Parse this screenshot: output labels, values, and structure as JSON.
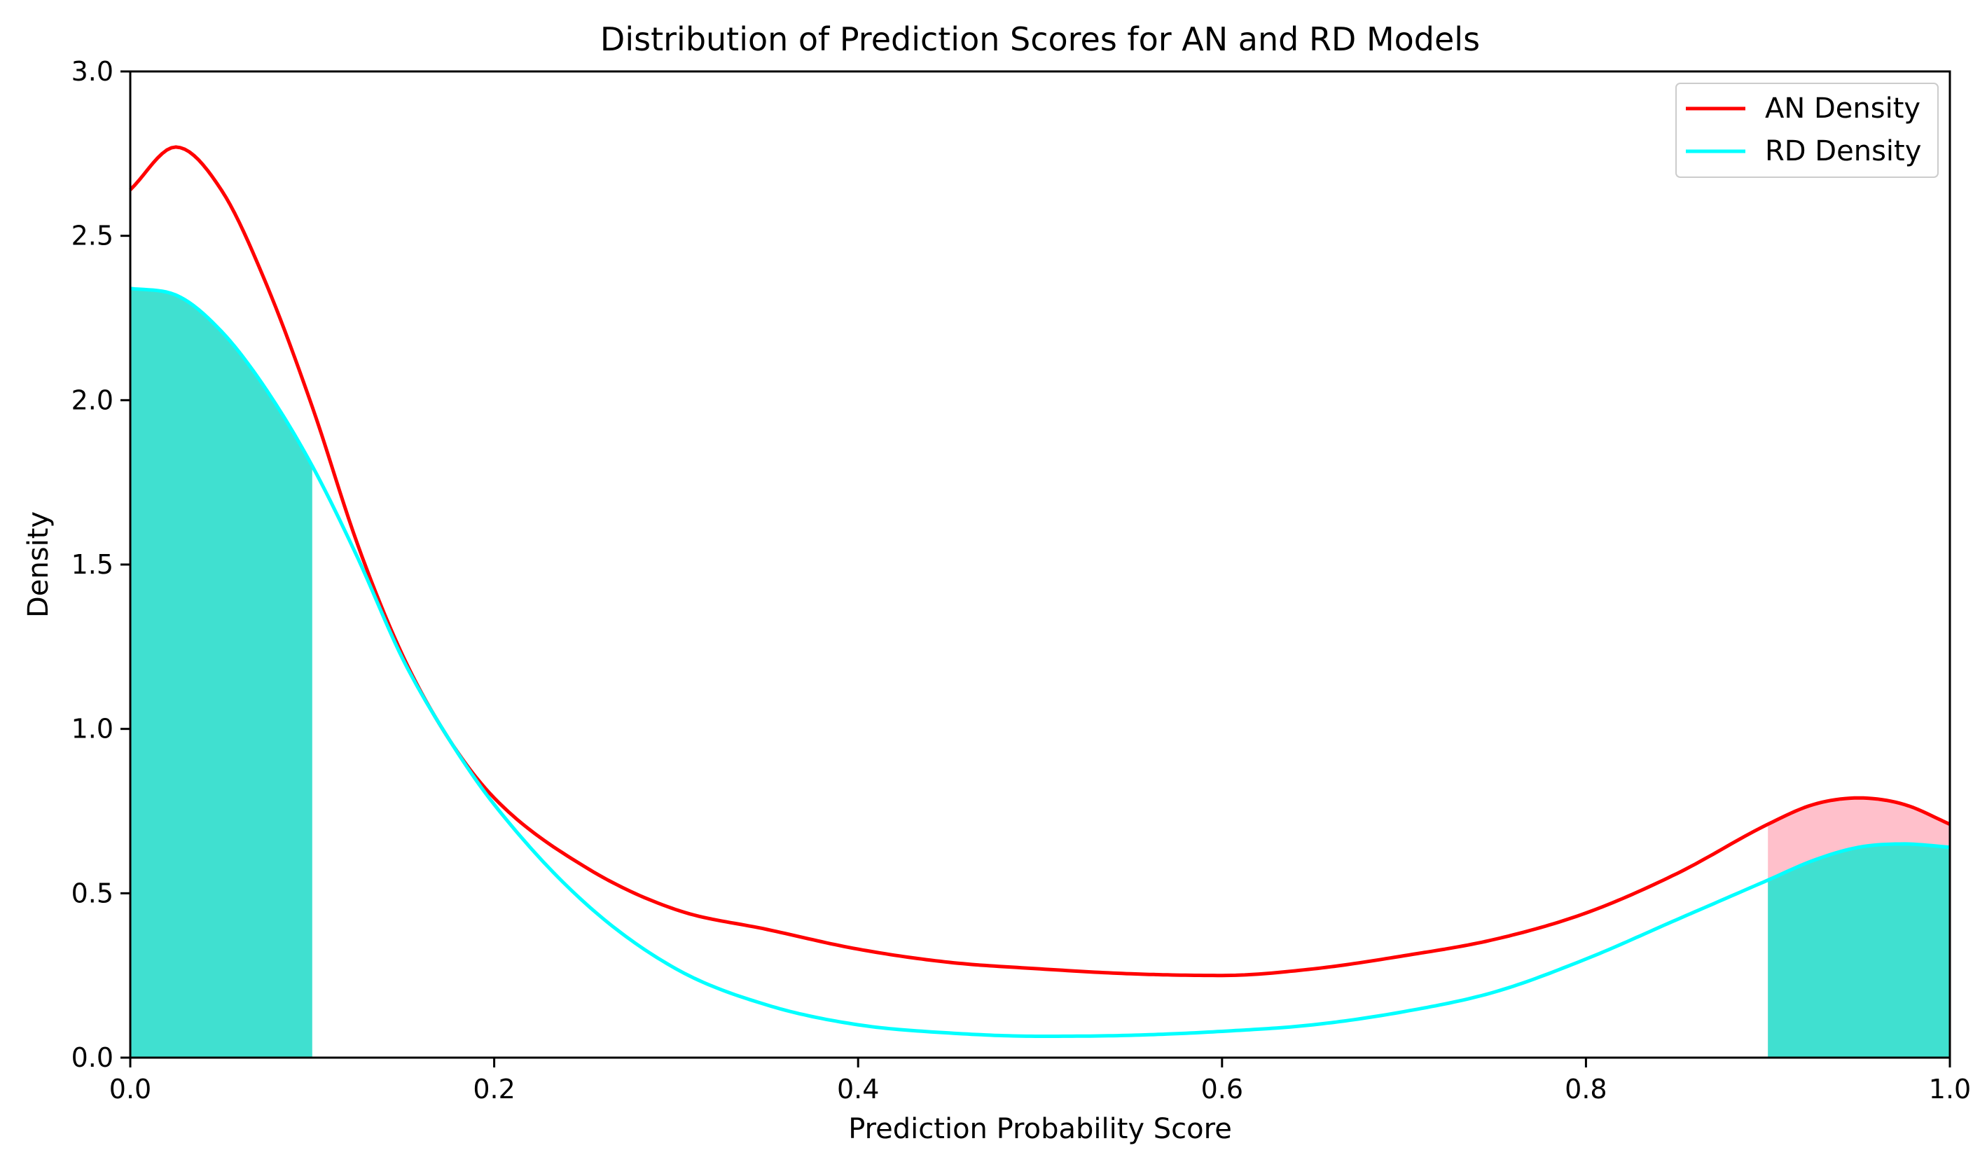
{
  "chart_data": {
    "type": "line",
    "title": "Distribution of Prediction Scores for AN and RD Models",
    "xlabel": "Prediction Probability Score",
    "ylabel": "Density",
    "xlim": [
      0.0,
      1.0
    ],
    "ylim": [
      0.0,
      3.0
    ],
    "xticks": [
      "0.0",
      "0.2",
      "0.4",
      "0.6",
      "0.8",
      "1.0"
    ],
    "yticks": [
      "0.0",
      "0.5",
      "1.0",
      "1.5",
      "2.0",
      "2.5",
      "3.0"
    ],
    "grid": false,
    "legend_position": "top-right",
    "series": [
      {
        "name": "AN Density",
        "color": "#ff0000",
        "x": [
          0.0,
          0.025,
          0.05,
          0.075,
          0.1,
          0.125,
          0.15,
          0.175,
          0.2,
          0.25,
          0.3,
          0.35,
          0.4,
          0.45,
          0.5,
          0.55,
          0.6,
          0.65,
          0.7,
          0.75,
          0.8,
          0.85,
          0.9,
          0.925,
          0.95,
          0.975,
          1.0
        ],
        "y": [
          2.64,
          2.77,
          2.64,
          2.35,
          1.98,
          1.56,
          1.22,
          0.97,
          0.79,
          0.58,
          0.45,
          0.39,
          0.33,
          0.29,
          0.27,
          0.255,
          0.25,
          0.27,
          0.31,
          0.36,
          0.44,
          0.56,
          0.71,
          0.77,
          0.79,
          0.77,
          0.71
        ]
      },
      {
        "name": "RD Density",
        "color": "#00ffff",
        "x": [
          0.0,
          0.025,
          0.05,
          0.075,
          0.1,
          0.125,
          0.15,
          0.175,
          0.2,
          0.25,
          0.3,
          0.35,
          0.4,
          0.45,
          0.5,
          0.55,
          0.6,
          0.65,
          0.7,
          0.75,
          0.8,
          0.85,
          0.9,
          0.925,
          0.95,
          0.975,
          1.0
        ],
        "y": [
          2.34,
          2.32,
          2.21,
          2.03,
          1.8,
          1.52,
          1.21,
          0.97,
          0.77,
          0.47,
          0.27,
          0.16,
          0.1,
          0.075,
          0.065,
          0.068,
          0.08,
          0.1,
          0.14,
          0.2,
          0.3,
          0.42,
          0.54,
          0.6,
          0.64,
          0.65,
          0.64
        ]
      }
    ],
    "shaded_regions": [
      {
        "series": "RD Density",
        "x_range": [
          0.0,
          0.1
        ],
        "color": "#40e0d0"
      },
      {
        "series": "AN Density",
        "x_range": [
          0.9,
          1.0
        ],
        "color": "#ffc0cb"
      },
      {
        "series": "RD Density",
        "x_range": [
          0.9,
          1.0
        ],
        "color": "#40e0d0"
      }
    ]
  }
}
